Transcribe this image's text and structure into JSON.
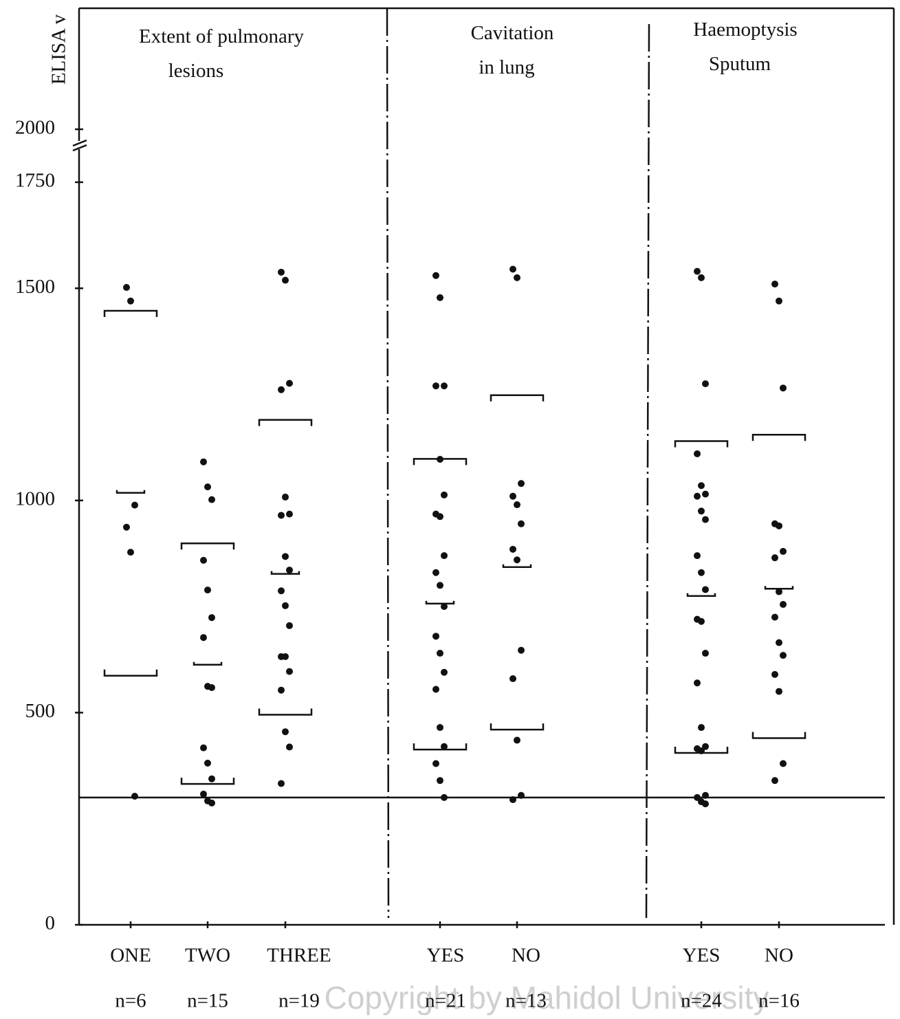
{
  "chart_data": {
    "type": "dot",
    "y_label": "ELISA v",
    "ylim": [
      0,
      2000
    ],
    "axis_break": [
      1750,
      2000
    ],
    "yticks": [
      0,
      500,
      1000,
      1500,
      1750,
      2000
    ],
    "reference_line": 300,
    "watermark": "Copyright by Mahidol University",
    "panels": [
      {
        "title": "Extent of pulmonary lesions",
        "groups": [
          0,
          1,
          2
        ]
      },
      {
        "title": "Cavitation in lung",
        "groups": [
          3,
          4
        ]
      },
      {
        "title": "Haemoptysis Sputum",
        "groups": [
          5,
          6
        ]
      }
    ],
    "groups": [
      {
        "category": "ONE",
        "n_label": "n=6",
        "mean": 1018,
        "sd_upper": 1447,
        "sd_lower": 587,
        "values": [
          1502,
          1470,
          989,
          937,
          878,
          303
        ]
      },
      {
        "category": "TWO",
        "n_label": "n=15",
        "mean": 613,
        "sd_upper": 899,
        "sd_lower": 332,
        "values": [
          1091,
          1032,
          1002,
          859,
          789,
          724,
          677,
          562,
          559,
          417,
          381,
          344,
          308,
          292,
          287
        ]
      },
      {
        "category": "THREE",
        "n_label": "n=19",
        "mean": 827,
        "sd_upper": 1190,
        "sd_lower": 495,
        "values": [
          1538,
          1519,
          1276,
          1261,
          1008,
          968,
          965,
          868,
          836,
          787,
          752,
          705,
          632,
          632,
          597,
          553,
          455,
          419,
          333
        ]
      },
      {
        "category": "YES",
        "n_label": "n=21",
        "mean": 757,
        "sd_upper": 1098,
        "sd_lower": 413,
        "values": [
          1530,
          1478,
          1270,
          1270,
          1097,
          1013,
          968,
          962,
          870,
          830,
          800,
          750,
          680,
          640,
          595,
          555,
          465,
          420,
          380,
          340,
          300
        ]
      },
      {
        "category": "NO",
        "n_label": "n=13",
        "mean": 843,
        "sd_upper": 1248,
        "sd_lower": 460,
        "values": [
          1545,
          1525,
          1040,
          1010,
          990,
          945,
          885,
          860,
          647,
          580,
          435,
          305,
          295
        ]
      },
      {
        "category": "YES",
        "n_label": "n=24",
        "mean": 775,
        "sd_upper": 1140,
        "sd_lower": 405,
        "values": [
          1540,
          1525,
          1275,
          1110,
          1035,
          1015,
          1010,
          975,
          955,
          870,
          830,
          790,
          720,
          715,
          640,
          570,
          465,
          420,
          415,
          410,
          305,
          300,
          290,
          285
        ]
      },
      {
        "category": "NO",
        "n_label": "n=16",
        "mean": 792,
        "sd_upper": 1155,
        "sd_lower": 440,
        "values": [
          1510,
          1470,
          1265,
          945,
          940,
          880,
          865,
          785,
          755,
          725,
          665,
          635,
          590,
          550,
          380,
          340
        ]
      }
    ]
  }
}
